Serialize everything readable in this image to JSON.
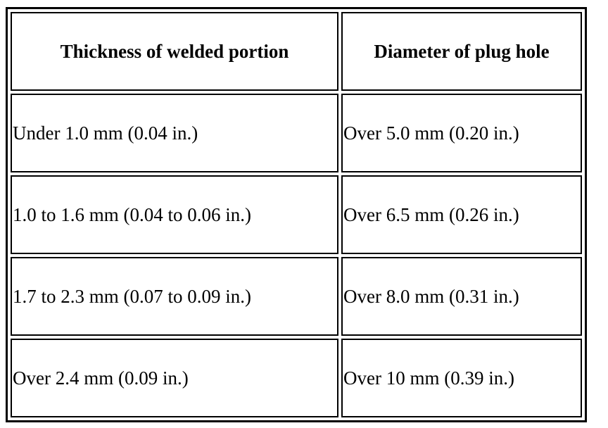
{
  "table": {
    "headers": [
      "Thickness of welded portion",
      "Diameter of plug hole"
    ],
    "rows": [
      [
        "Under 1.0 mm (0.04 in.)",
        "Over 5.0 mm (0.20 in.)"
      ],
      [
        "1.0 to 1.6 mm (0.04 to 0.06 in.)",
        "Over 6.5 mm (0.26 in.)"
      ],
      [
        "1.7 to 2.3 mm (0.07 to 0.09 in.)",
        "Over 8.0 mm (0.31 in.)"
      ],
      [
        "Over 2.4 mm (0.09 in.)",
        "Over 10 mm (0.39 in.)"
      ]
    ]
  }
}
